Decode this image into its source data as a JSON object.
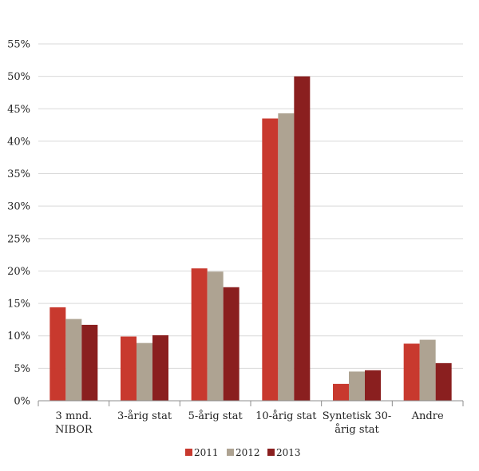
{
  "chart_data": {
    "type": "bar",
    "title": "",
    "xlabel": "",
    "ylabel": "",
    "categories": [
      [
        "3 mnd.",
        "NIBOR"
      ],
      [
        "3-årig stat"
      ],
      [
        "5-årig stat"
      ],
      [
        "10-årig stat"
      ],
      [
        "Syntetisk 30-",
        "årig stat"
      ],
      [
        "Andre"
      ]
    ],
    "series": [
      {
        "name": "2011",
        "color": "#c8392e",
        "values": [
          14.4,
          9.9,
          20.4,
          43.5,
          2.6,
          8.8
        ]
      },
      {
        "name": "2012",
        "color": "#aea392",
        "values": [
          12.6,
          8.9,
          19.9,
          44.3,
          4.5,
          9.4
        ]
      },
      {
        "name": "2013",
        "color": "#8a1f1f",
        "values": [
          11.7,
          10.1,
          17.5,
          50.0,
          4.7,
          5.8
        ]
      }
    ],
    "ylim": [
      0,
      55
    ],
    "yticks": [
      0,
      5,
      10,
      15,
      20,
      25,
      30,
      35,
      40,
      45,
      50,
      55
    ],
    "ytick_format": "{v}%",
    "grid": true,
    "legend": "bottom"
  }
}
